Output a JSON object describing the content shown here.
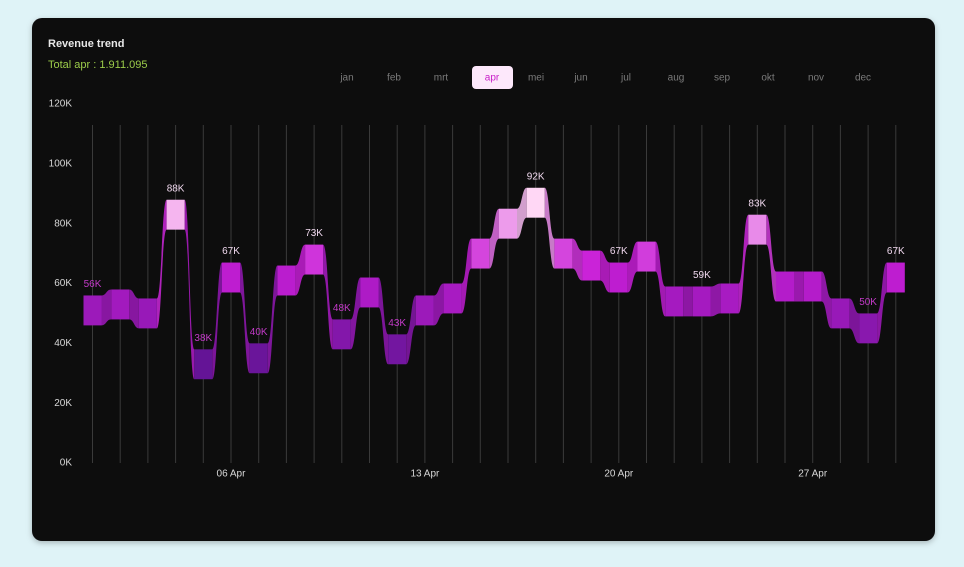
{
  "chart_data": {
    "type": "ribbon",
    "title": "Revenue trend",
    "subtitle": "Total apr : 1.911.095",
    "months": [
      "jan",
      "feb",
      "mrt",
      "apr",
      "mei",
      "jun",
      "jul",
      "aug",
      "sep",
      "okt",
      "nov",
      "dec"
    ],
    "active_month_index": 3,
    "categories": [
      null,
      null,
      null,
      null,
      null,
      "06 Apr",
      null,
      null,
      null,
      null,
      null,
      null,
      "13 Apr",
      null,
      null,
      null,
      null,
      null,
      null,
      "20 Apr",
      null,
      null,
      null,
      null,
      null,
      null,
      "27 Apr",
      null,
      null,
      null
    ],
    "values": [
      56,
      58,
      55,
      88,
      38,
      67,
      40,
      66,
      73,
      48,
      62,
      43,
      56,
      60,
      75,
      85,
      92,
      75,
      71,
      67,
      74,
      59,
      59,
      60,
      83,
      64,
      64,
      55,
      50,
      67
    ],
    "value_labels": [
      "56K",
      null,
      null,
      "88K",
      "38K",
      "67K",
      "40K",
      null,
      "73K",
      "48K",
      null,
      "43K",
      null,
      null,
      null,
      null,
      "92K",
      null,
      null,
      "67K",
      null,
      null,
      "59K",
      null,
      "83K",
      null,
      null,
      null,
      "50K",
      "67K"
    ],
    "ylim": [
      0,
      120
    ],
    "yticks": [
      {
        "value": 0,
        "label": "0K"
      },
      {
        "value": 20,
        "label": "20K"
      },
      {
        "value": 40,
        "label": "40K"
      },
      {
        "value": 60,
        "label": "60K"
      },
      {
        "value": 80,
        "label": "80K"
      },
      {
        "value": 100,
        "label": "100K"
      },
      {
        "value": 120,
        "label": "120K"
      }
    ]
  }
}
